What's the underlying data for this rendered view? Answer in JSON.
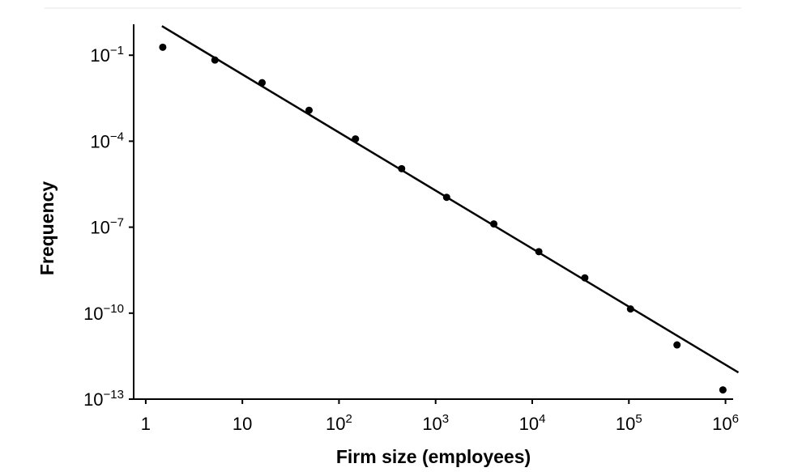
{
  "chart_data": {
    "type": "scatter",
    "xlabel": "Firm size (employees)",
    "ylabel": "Frequency",
    "x": [
      1.5,
      5.2,
      16,
      49,
      148,
      445,
      1300,
      4000,
      11700,
      35000,
      104000,
      315000,
      940000
    ],
    "values": [
      0.19,
      0.068,
      0.011,
      0.0012,
      0.00012,
      1.1e-05,
      1.1e-06,
      1.3e-07,
      1.4e-08,
      1.7e-09,
      1.4e-10,
      7.8e-12,
      2.1e-13
    ],
    "color": "#000000",
    "fit_line": {
      "x": [
        1.47,
        1360000
      ],
      "values": [
        1.04,
        8.5e-13
      ],
      "color": "#000000"
    },
    "xscale": "log",
    "yscale": "log",
    "xlim": [
      0.75,
      1200000
    ],
    "ylim": [
      1e-13,
      1.2
    ],
    "xticks": [
      1,
      10,
      {
        "value": 100,
        "label": "102"
      },
      {
        "value": 1000,
        "label": "103"
      },
      {
        "value": 10000,
        "label": "104"
      },
      {
        "value": 100000,
        "label": "105"
      },
      {
        "value": 1000000,
        "label": "106"
      }
    ],
    "yticks": [
      {
        "value": 0.1,
        "label": "10−1"
      },
      {
        "value": 0.0001,
        "label": "10−4"
      },
      {
        "value": 1e-07,
        "label": "10−7"
      },
      {
        "value": 1e-10,
        "label": "10−10"
      },
      {
        "value": 1e-13,
        "label": "10−13"
      }
    ]
  }
}
